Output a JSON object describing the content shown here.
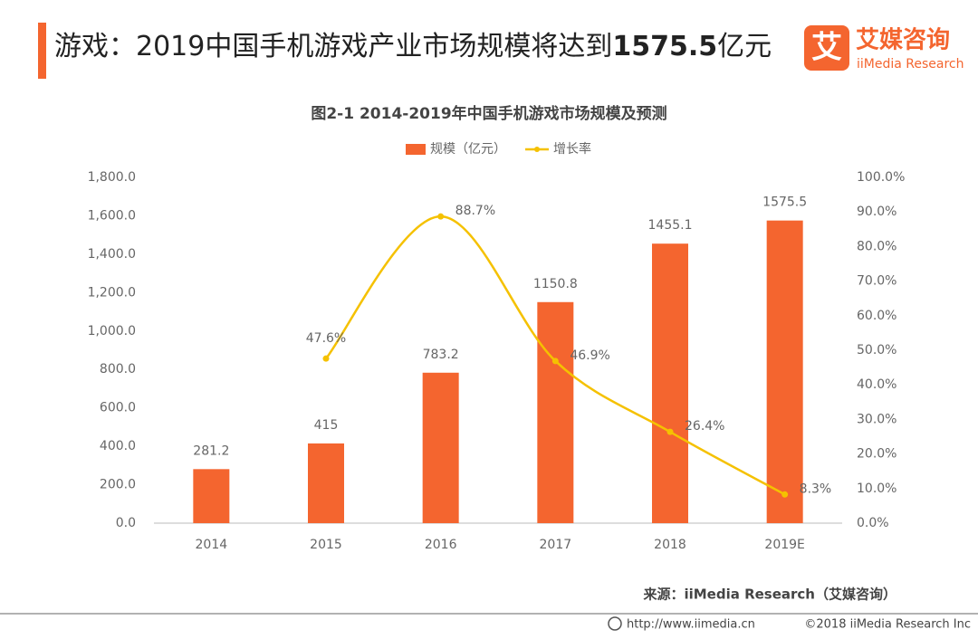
{
  "header": {
    "title_parts": [
      "游戏：2019中国手机游戏产业市场规模将达到",
      "1575.5",
      "亿元"
    ],
    "logo_icon": "艾",
    "logo_name": "艾媒咨询",
    "logo_sub": "iiMedia Research"
  },
  "chart_data": {
    "type": "bar_line",
    "title": "图2-1 2014-2019年中国手机游戏市场规模及预测",
    "categories": [
      "2014",
      "2015",
      "2016",
      "2017",
      "2018",
      "2019E"
    ],
    "series": [
      {
        "name": "规模（亿元）",
        "type": "bar",
        "color": "#f4652f",
        "values": [
          281.2,
          415,
          783.2,
          1150.8,
          1455.1,
          1575.5
        ]
      },
      {
        "name": "增长率",
        "type": "line",
        "axis": "y2",
        "color": "#f5c100",
        "values": [
          null,
          47.6,
          88.7,
          46.9,
          26.4,
          8.3
        ],
        "value_labels": [
          null,
          "47.6%",
          "88.7%",
          "46.9%",
          "26.4%",
          "8.3%"
        ]
      }
    ],
    "ylim": [
      0,
      1800
    ],
    "yticks": [
      {
        "value": 0,
        "label": "0.0"
      },
      {
        "value": 200,
        "label": "200.0"
      },
      {
        "value": 400,
        "label": "400.0"
      },
      {
        "value": 600,
        "label": "600.0"
      },
      {
        "value": 800,
        "label": "800.0"
      },
      {
        "value": 1000,
        "label": "1,000.0"
      },
      {
        "value": 1200,
        "label": "1,200.0"
      },
      {
        "value": 1400,
        "label": "1,400.0"
      },
      {
        "value": 1600,
        "label": "1,600.0"
      },
      {
        "value": 1800,
        "label": "1,800.0"
      }
    ],
    "y2lim": [
      0,
      100
    ],
    "y2ticks": [
      {
        "value": 0,
        "label": "0.0%"
      },
      {
        "value": 10,
        "label": "10.0%"
      },
      {
        "value": 20,
        "label": "20.0%"
      },
      {
        "value": 30,
        "label": "30.0%"
      },
      {
        "value": 40,
        "label": "40.0%"
      },
      {
        "value": 50,
        "label": "50.0%"
      },
      {
        "value": 60,
        "label": "60.0%"
      },
      {
        "value": 70,
        "label": "70.0%"
      },
      {
        "value": 80,
        "label": "80.0%"
      },
      {
        "value": 90,
        "label": "90.0%"
      },
      {
        "value": 100,
        "label": "100.0%"
      }
    ],
    "grid": false,
    "legend": "top"
  },
  "source": "来源：iiMedia Research（艾媒咨询）",
  "footer": {
    "url": "http://www.iimedia.cn",
    "copyright": "©2018  iiMedia Research  Inc"
  }
}
